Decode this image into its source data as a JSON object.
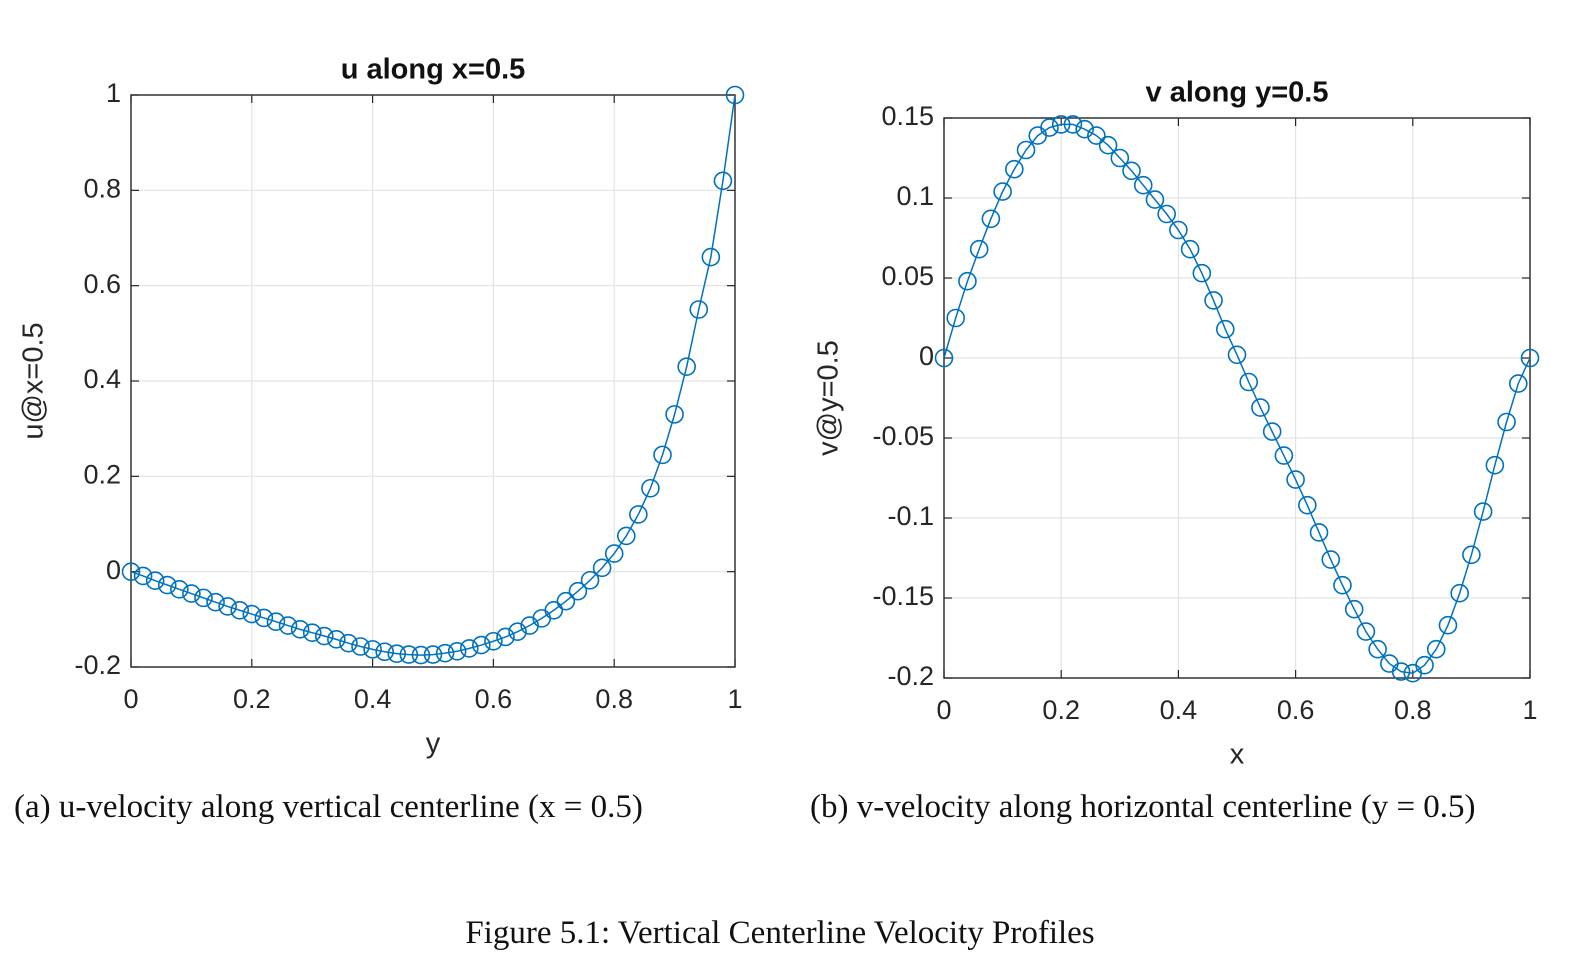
{
  "chart_data": [
    {
      "type": "line",
      "title": "u along x=0.5",
      "xlabel": "y",
      "ylabel": "u@x=0.5",
      "color": "#0072bd",
      "grid": true,
      "xlim": [
        0,
        1
      ],
      "xticks": [
        0,
        0.2,
        0.4,
        0.6,
        0.8,
        1
      ],
      "ylim": [
        -0.2,
        1
      ],
      "yticks": [
        -0.2,
        0,
        0.2,
        0.4,
        0.6,
        0.8,
        1
      ],
      "x": [
        0,
        0.02,
        0.04,
        0.06,
        0.08,
        0.1,
        0.12,
        0.14,
        0.16,
        0.18,
        0.2,
        0.22,
        0.24,
        0.26,
        0.28,
        0.3,
        0.32,
        0.34,
        0.36,
        0.38,
        0.4,
        0.42,
        0.44,
        0.46,
        0.48,
        0.5,
        0.52,
        0.54,
        0.56,
        0.58,
        0.6,
        0.62,
        0.64,
        0.66,
        0.68,
        0.7,
        0.72,
        0.74,
        0.76,
        0.78,
        0.8,
        0.82,
        0.84,
        0.86,
        0.88,
        0.9,
        0.92,
        0.94,
        0.96,
        0.98,
        1
      ],
      "values": [
        0,
        -0.009,
        -0.019,
        -0.028,
        -0.037,
        -0.046,
        -0.055,
        -0.064,
        -0.073,
        -0.081,
        -0.089,
        -0.097,
        -0.105,
        -0.113,
        -0.121,
        -0.128,
        -0.135,
        -0.142,
        -0.15,
        -0.157,
        -0.163,
        -0.168,
        -0.172,
        -0.174,
        -0.175,
        -0.174,
        -0.171,
        -0.167,
        -0.161,
        -0.154,
        -0.146,
        -0.137,
        -0.126,
        -0.113,
        -0.098,
        -0.081,
        -0.062,
        -0.041,
        -0.018,
        0.008,
        0.038,
        0.075,
        0.12,
        0.175,
        0.245,
        0.33,
        0.43,
        0.55,
        0.66,
        0.82,
        1
      ]
    },
    {
      "type": "line",
      "title": "v along y=0.5",
      "xlabel": "x",
      "ylabel": "v@y=0.5",
      "color": "#0072bd",
      "grid": true,
      "xlim": [
        0,
        1
      ],
      "xticks": [
        0,
        0.2,
        0.4,
        0.6,
        0.8,
        1
      ],
      "ylim": [
        -0.2,
        0.15
      ],
      "yticks": [
        -0.2,
        -0.15,
        -0.1,
        -0.05,
        0,
        0.05,
        0.1,
        0.15
      ],
      "x": [
        0,
        0.02,
        0.04,
        0.06,
        0.08,
        0.1,
        0.12,
        0.14,
        0.16,
        0.18,
        0.2,
        0.22,
        0.24,
        0.26,
        0.28,
        0.3,
        0.32,
        0.34,
        0.36,
        0.38,
        0.4,
        0.42,
        0.44,
        0.46,
        0.48,
        0.5,
        0.52,
        0.54,
        0.56,
        0.58,
        0.6,
        0.62,
        0.64,
        0.66,
        0.68,
        0.7,
        0.72,
        0.74,
        0.76,
        0.78,
        0.8,
        0.82,
        0.84,
        0.86,
        0.88,
        0.9,
        0.92,
        0.94,
        0.96,
        0.98,
        1
      ],
      "values": [
        0,
        0.025,
        0.048,
        0.068,
        0.087,
        0.104,
        0.118,
        0.13,
        0.139,
        0.144,
        0.146,
        0.146,
        0.143,
        0.139,
        0.133,
        0.125,
        0.117,
        0.108,
        0.099,
        0.09,
        0.08,
        0.068,
        0.053,
        0.036,
        0.018,
        0.002,
        -0.015,
        -0.031,
        -0.046,
        -0.061,
        -0.076,
        -0.092,
        -0.109,
        -0.126,
        -0.142,
        -0.157,
        -0.171,
        -0.182,
        -0.191,
        -0.196,
        -0.197,
        -0.192,
        -0.182,
        -0.167,
        -0.147,
        -0.123,
        -0.096,
        -0.067,
        -0.04,
        -0.016,
        0
      ]
    }
  ],
  "captions": [
    "(a) u-velocity along vertical centerline (x = 0.5)",
    "(b) v-velocity along horizontal centerline (y = 0.5)"
  ],
  "figure_caption": "Figure 5.1: Vertical Centerline Velocity Profiles"
}
